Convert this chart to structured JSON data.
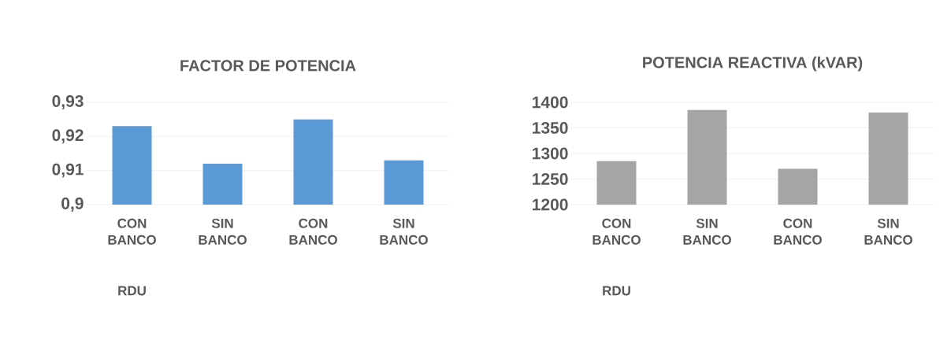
{
  "chart_data": [
    {
      "type": "bar",
      "title": "FACTOR DE POTENCIA",
      "categories": [
        "CON BANCO",
        "SIN BANCO",
        "CON BANCO",
        "SIN BANCO"
      ],
      "values": [
        0.923,
        0.912,
        0.925,
        0.913
      ],
      "color": "#5b9bd5",
      "ylim": [
        0.9,
        0.93
      ],
      "yticks": [
        {
          "value": 0.9,
          "label": "0,9"
        },
        {
          "value": 0.91,
          "label": "0,91"
        },
        {
          "value": 0.92,
          "label": "0,92"
        },
        {
          "value": 0.93,
          "label": "0,93"
        }
      ],
      "grid": "y",
      "annotations": [
        "RDU"
      ]
    },
    {
      "type": "bar",
      "title": "POTENCIA REACTIVA (kVAR)",
      "categories": [
        "CON BANCO",
        "SIN BANCO",
        "CON BANCO",
        "SIN BANCO"
      ],
      "values": [
        1285,
        1385,
        1270,
        1380
      ],
      "color": "#a5a5a5",
      "ylim": [
        1200,
        1400
      ],
      "yticks": [
        1200,
        1250,
        1300,
        1350,
        1400
      ],
      "grid": "y",
      "annotations": [
        "RDU"
      ]
    }
  ]
}
